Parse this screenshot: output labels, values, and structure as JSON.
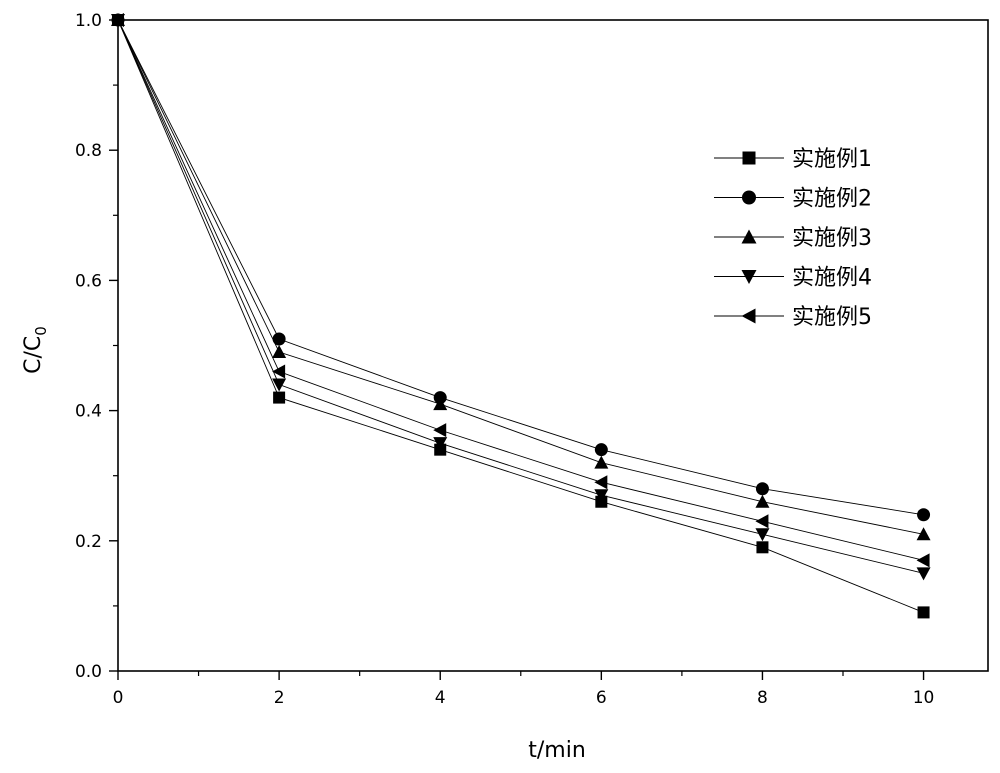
{
  "chart_data": {
    "type": "line",
    "title": "",
    "xlabel": "t/min",
    "ylabel": {
      "main": "C/C",
      "sub": "0"
    },
    "xlim": [
      0,
      10.8
    ],
    "ylim": [
      0,
      1.0
    ],
    "xticks": [
      "0",
      "2",
      "4",
      "6",
      "8",
      "10"
    ],
    "yticks": [
      "0.0",
      "0.2",
      "0.4",
      "0.6",
      "0.8",
      "1.0"
    ],
    "x": [
      0,
      2,
      4,
      6,
      8,
      10
    ],
    "legend_position": "upper-right",
    "grid": false,
    "series": [
      {
        "name": "实施例1",
        "marker": "square",
        "values": [
          1.0,
          0.42,
          0.34,
          0.26,
          0.19,
          0.09
        ]
      },
      {
        "name": "实施例2",
        "marker": "circle",
        "values": [
          1.0,
          0.51,
          0.42,
          0.34,
          0.28,
          0.24
        ]
      },
      {
        "name": "实施例3",
        "marker": "triangle-up",
        "values": [
          1.0,
          0.49,
          0.41,
          0.32,
          0.26,
          0.21
        ]
      },
      {
        "name": "实施例4",
        "marker": "triangle-down",
        "values": [
          1.0,
          0.44,
          0.35,
          0.27,
          0.21,
          0.15
        ]
      },
      {
        "name": "实施例5",
        "marker": "triangle-left",
        "values": [
          1.0,
          0.46,
          0.37,
          0.29,
          0.23,
          0.17
        ]
      }
    ]
  }
}
